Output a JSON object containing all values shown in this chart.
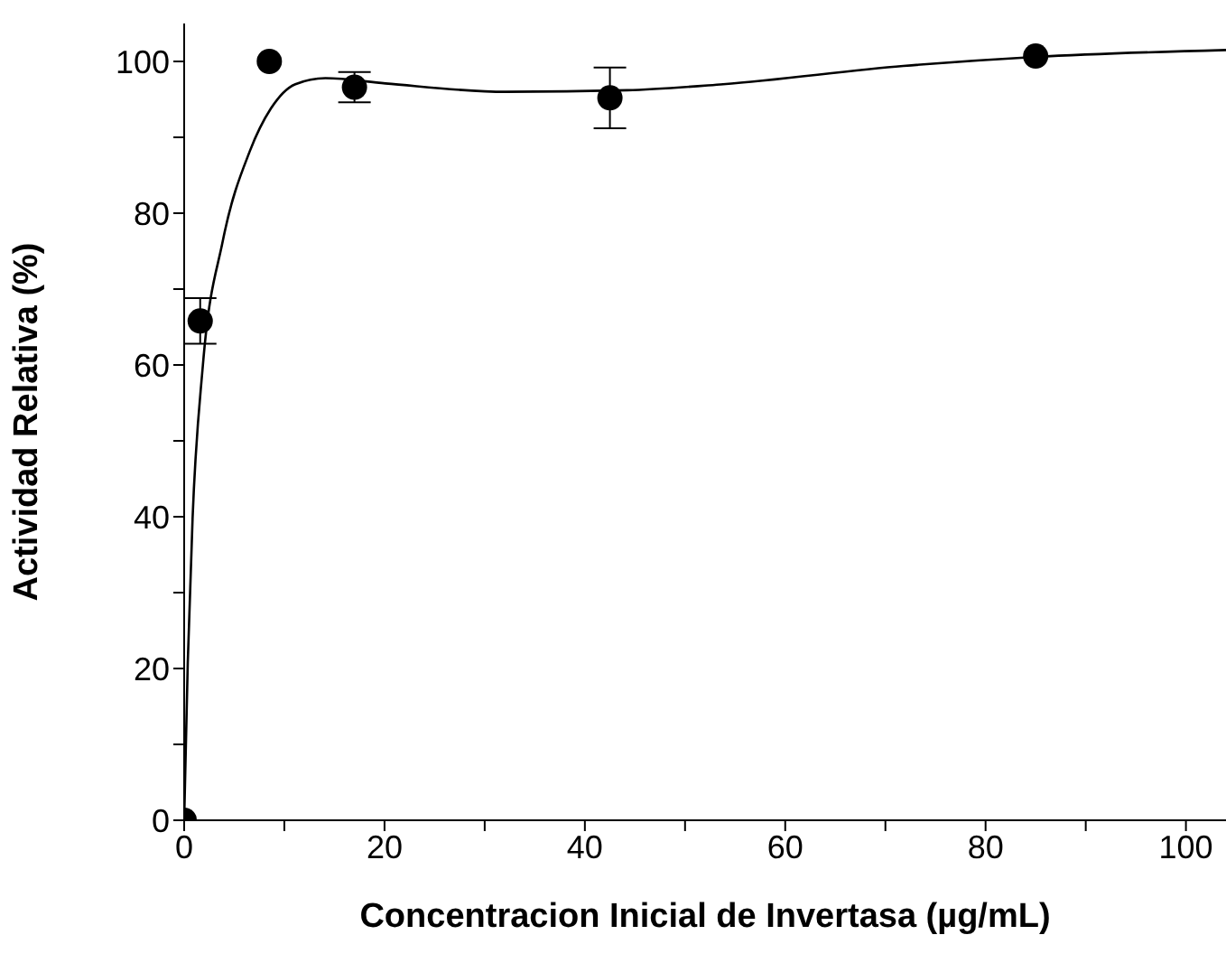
{
  "chart_data": {
    "type": "scatter",
    "xlabel": "Concentracion Inicial de Invertasa (µg/mL)",
    "ylabel": "Actividad Relativa (%)",
    "xlim": [
      0,
      104
    ],
    "ylim": [
      0,
      105
    ],
    "xticks": [
      0,
      {
        "value": 10,
        "label": null
      },
      20,
      {
        "value": 30,
        "label": null
      },
      40,
      {
        "value": 50,
        "label": null
      },
      60,
      {
        "value": 70,
        "label": null
      },
      80,
      {
        "value": 90,
        "label": null
      },
      100
    ],
    "yticks": [
      0,
      {
        "value": 10,
        "label": null
      },
      20,
      {
        "value": 30,
        "label": null
      },
      40,
      {
        "value": 50,
        "label": null
      },
      60,
      {
        "value": 70,
        "label": null
      },
      80,
      {
        "value": 90,
        "label": null
      },
      100
    ],
    "marker": "circle",
    "series": [
      {
        "color": "#000000",
        "x": [
          0,
          1.6,
          8.5,
          17,
          42.5,
          85
        ],
        "values": [
          0,
          65.8,
          100,
          96.6,
          95.2,
          100.7
        ],
        "errors": [
          null,
          3,
          null,
          2,
          4,
          null
        ]
      },
      {
        "type": "line",
        "color": "#000000",
        "line_style": "solid",
        "marker": "none",
        "x": [
          0,
          0.36,
          0.84,
          1.87,
          3.85,
          6.56,
          8.66,
          11.1,
          14.1,
          20.1,
          32.1,
          44.2,
          53.8,
          71.8,
          85,
          104
        ],
        "values": [
          0,
          20.8,
          39.8,
          60,
          76.3,
          88.2,
          93.8,
          97,
          97.8,
          97.1,
          96,
          96.2,
          97,
          99.4,
          100.6,
          101.5
        ]
      }
    ]
  }
}
